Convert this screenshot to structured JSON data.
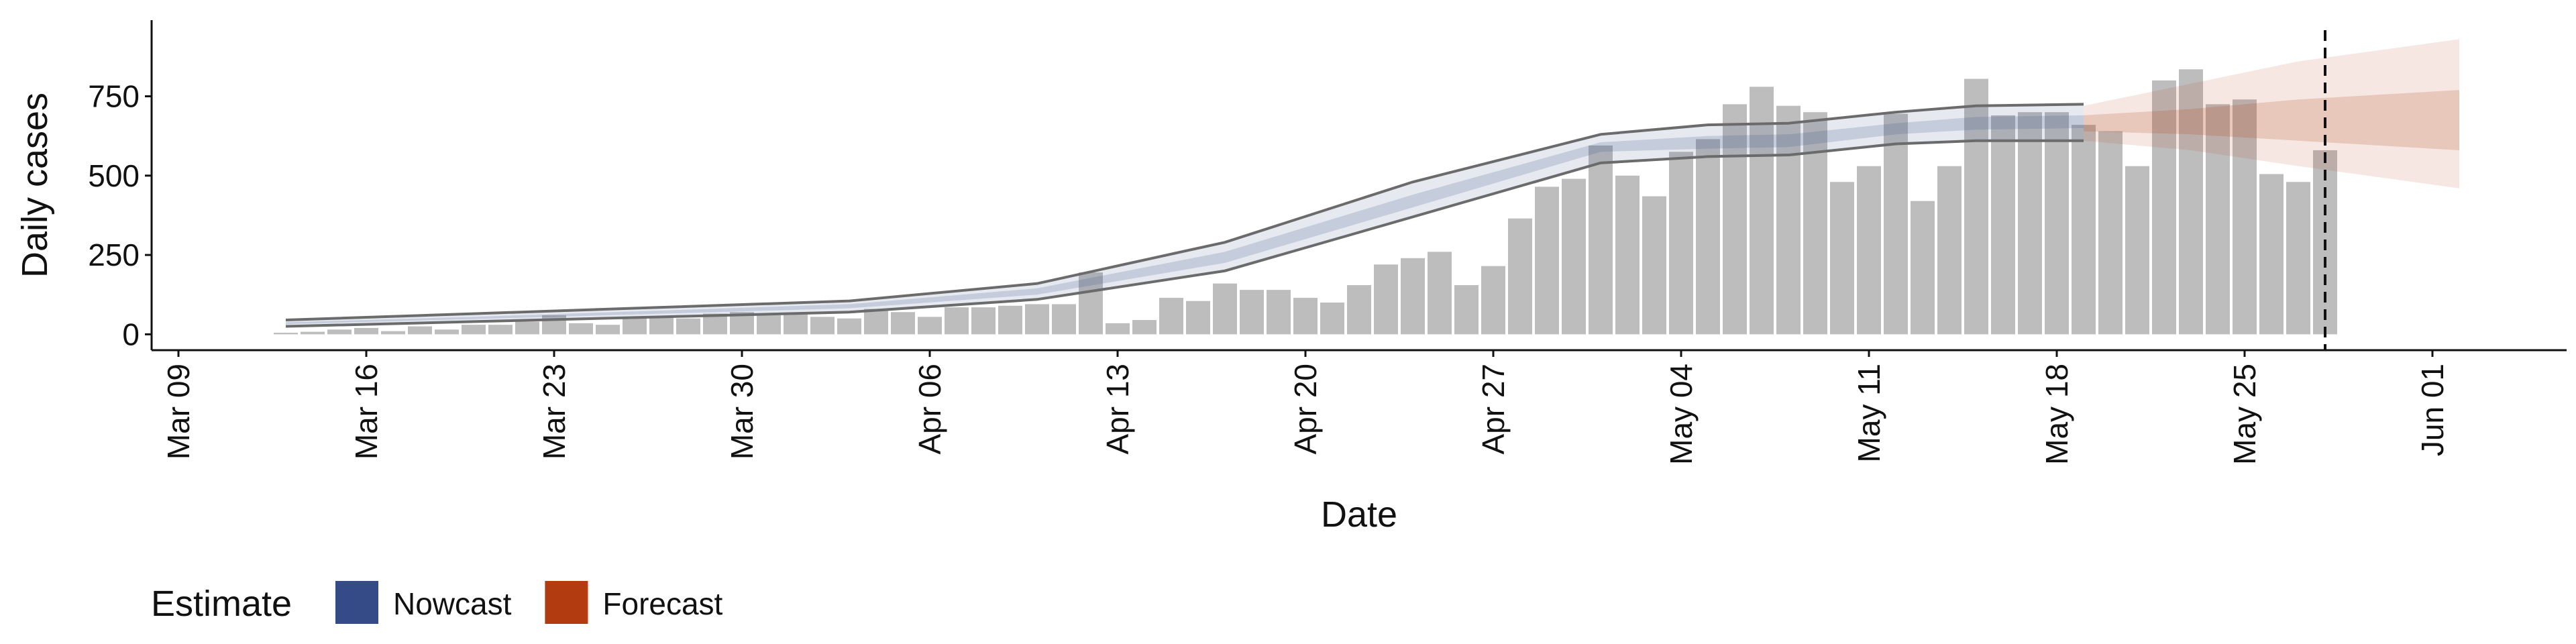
{
  "chart_data": {
    "type": "bar",
    "y_label": "Daily cases",
    "x_label": "Date",
    "ylim": [
      -50,
      990
    ],
    "yticks": [
      0,
      250,
      500,
      750
    ],
    "xlim": [
      "Mar 08",
      "Jun 06"
    ],
    "xticks": [
      "Mar 09",
      "Mar 16",
      "Mar 23",
      "Mar 30",
      "Apr 06",
      "Apr 13",
      "Apr 20",
      "Apr 27",
      "May 04",
      "May 11",
      "May 18",
      "May 25",
      "Jun 01"
    ],
    "bar_color": "#bdbdbd",
    "x": [
      "Mar 13",
      "Mar 14",
      "Mar 15",
      "Mar 16",
      "Mar 17",
      "Mar 18",
      "Mar 19",
      "Mar 20",
      "Mar 21",
      "Mar 22",
      "Mar 23",
      "Mar 24",
      "Mar 25",
      "Mar 26",
      "Mar 27",
      "Mar 28",
      "Mar 29",
      "Mar 30",
      "Mar 31",
      "Apr 01",
      "Apr 02",
      "Apr 03",
      "Apr 04",
      "Apr 05",
      "Apr 06",
      "Apr 07",
      "Apr 08",
      "Apr 09",
      "Apr 10",
      "Apr 11",
      "Apr 12",
      "Apr 13",
      "Apr 14",
      "Apr 15",
      "Apr 16",
      "Apr 17",
      "Apr 18",
      "Apr 19",
      "Apr 20",
      "Apr 21",
      "Apr 22",
      "Apr 23",
      "Apr 24",
      "Apr 25",
      "Apr 26",
      "Apr 27",
      "Apr 28",
      "Apr 29",
      "Apr 30",
      "May 01",
      "May 02",
      "May 03",
      "May 04",
      "May 05",
      "May 06",
      "May 07",
      "May 08",
      "May 09",
      "May 10",
      "May 11",
      "May 12",
      "May 13",
      "May 14",
      "May 15",
      "May 16",
      "May 17",
      "May 18",
      "May 19",
      "May 20",
      "May 21",
      "May 22",
      "May 23",
      "May 24",
      "May 25",
      "May 26",
      "May 27",
      "May 28"
    ],
    "values": [
      5,
      8,
      15,
      20,
      10,
      25,
      15,
      30,
      30,
      40,
      60,
      35,
      30,
      55,
      55,
      50,
      65,
      70,
      60,
      65,
      55,
      50,
      80,
      70,
      55,
      85,
      85,
      90,
      95,
      95,
      195,
      35,
      45,
      115,
      105,
      160,
      140,
      140,
      115,
      100,
      155,
      220,
      240,
      260,
      155,
      215,
      365,
      465,
      490,
      595,
      500,
      435,
      575,
      615,
      725,
      780,
      720,
      700,
      480,
      530,
      695,
      420,
      530,
      805,
      690,
      700,
      700,
      660,
      640,
      530,
      800,
      835,
      725,
      740,
      505,
      480,
      580
    ],
    "legend_title": "Estimate",
    "series": [
      {
        "name": "Nowcast",
        "color": "#344b87",
        "x": [
          "Mar 13",
          "Mar 20",
          "Mar 27",
          "Apr 03",
          "Apr 10",
          "Apr 17",
          "Apr 24",
          "May 01",
          "May 05",
          "May 08",
          "May 12",
          "May 15",
          "May 19"
        ],
        "upper90": [
          45,
          65,
          85,
          105,
          160,
          290,
          480,
          630,
          660,
          665,
          700,
          720,
          725
        ],
        "lower90": [
          25,
          40,
          55,
          70,
          110,
          200,
          370,
          540,
          560,
          565,
          600,
          610,
          610
        ],
        "upper50": [
          38,
          55,
          75,
          95,
          145,
          260,
          440,
          605,
          625,
          630,
          665,
          685,
          690
        ],
        "lower50": [
          32,
          48,
          65,
          82,
          125,
          225,
          400,
          575,
          585,
          590,
          630,
          645,
          650
        ]
      },
      {
        "name": "Forecast",
        "color": "#b33b10",
        "x": [
          "May 19",
          "May 23",
          "May 27",
          "Jun 02"
        ],
        "upper90": [
          720,
          790,
          860,
          930
        ],
        "lower90": [
          610,
          580,
          530,
          460
        ],
        "upper50": [
          690,
          710,
          740,
          770
        ],
        "lower50": [
          640,
          630,
          610,
          580
        ]
      }
    ]
  }
}
